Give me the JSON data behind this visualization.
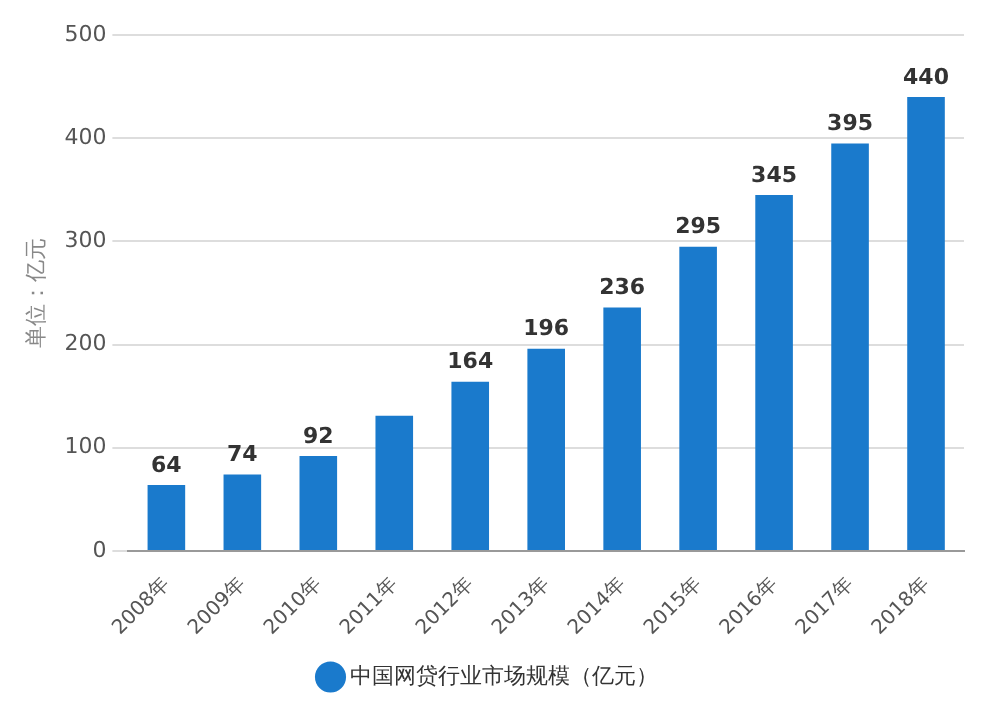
{
  "chart_data": {
    "type": "bar",
    "ylabel": "单位：亿元",
    "categories": [
      "2008年",
      "2009年",
      "2010年",
      "2011年",
      "2012年",
      "2013年",
      "2014年",
      "2015年",
      "2016年",
      "2017年",
      "2018年"
    ],
    "series": [
      {
        "name": "中国网贷行业市场规模（亿元）",
        "color": "#1a7acc",
        "values": [
          64,
          74,
          92,
          131,
          164,
          196,
          236,
          295,
          345,
          395,
          440
        ]
      }
    ],
    "value_labels": [
      "64",
      "74",
      "92",
      null,
      "164",
      "196",
      "236",
      "295",
      "345",
      "395",
      "440"
    ],
    "ylim": [
      0,
      500
    ],
    "yticks": [
      0,
      100,
      200,
      300,
      400,
      500
    ],
    "grid": "y",
    "legend": "bottom"
  }
}
